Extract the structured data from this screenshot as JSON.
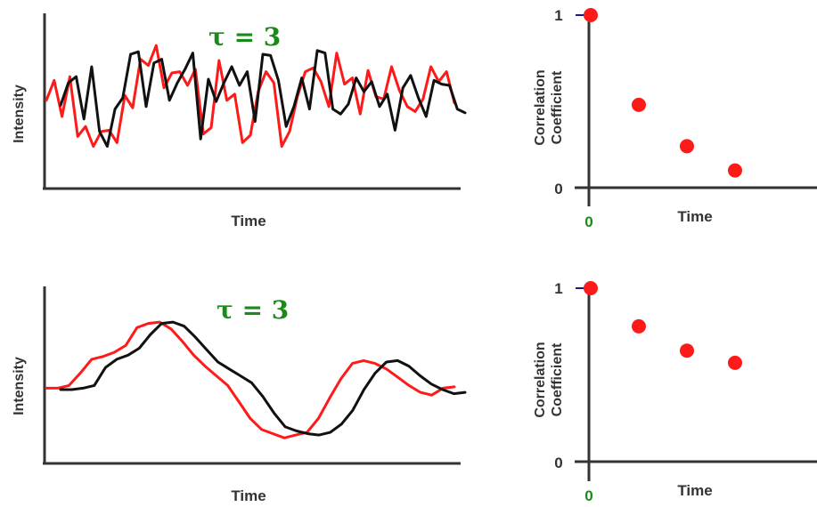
{
  "panels": [
    {
      "intensity": {
        "ylabel": "Intensity",
        "xlabel": "Time",
        "tau_label": "τ = 3",
        "red_trace": [
          0.48,
          0.64,
          0.35,
          0.67,
          0.19,
          0.27,
          0.11,
          0.23,
          0.24,
          0.14,
          0.52,
          0.42,
          0.81,
          0.76,
          0.92,
          0.58,
          0.7,
          0.71,
          0.6,
          0.73,
          0.21,
          0.26,
          0.8,
          0.48,
          0.53,
          0.14,
          0.2,
          0.55,
          0.71,
          0.62,
          0.11,
          0.23,
          0.51,
          0.71,
          0.74,
          0.63,
          0.43,
          0.86,
          0.61,
          0.66,
          0.37,
          0.72,
          0.51,
          0.49,
          0.75,
          0.56,
          0.43,
          0.39,
          0.49,
          0.75,
          0.63,
          0.71,
          0.46
        ],
        "black_trace": [
          0.44,
          0.62,
          0.67,
          0.33,
          0.75,
          0.23,
          0.11,
          0.41,
          0.5,
          0.85,
          0.87,
          0.43,
          0.78,
          0.81,
          0.48,
          0.62,
          0.73,
          0.86,
          0.17,
          0.65,
          0.47,
          0.62,
          0.75,
          0.6,
          0.71,
          0.31,
          0.85,
          0.84,
          0.64,
          0.27,
          0.43,
          0.66,
          0.41,
          0.88,
          0.86,
          0.41,
          0.37,
          0.45,
          0.66,
          0.55,
          0.63,
          0.43,
          0.53,
          0.24,
          0.58,
          0.68,
          0.5,
          0.35,
          0.64,
          0.61,
          0.6,
          0.41,
          0.38
        ]
      },
      "correlation": {
        "ylabel_line1": "Correlation",
        "ylabel_line2": "Coefficient",
        "xlabel": "Time",
        "y_top_label": "1",
        "y_bottom_label": "0",
        "x_origin_label": "0",
        "values": [
          1.0,
          0.48,
          0.24,
          0.1
        ]
      }
    },
    {
      "intensity": {
        "ylabel": "Intensity",
        "xlabel": "Time",
        "tau_label": "τ = 3",
        "red_trace": [
          0.41,
          0.41,
          0.43,
          0.52,
          0.62,
          0.64,
          0.67,
          0.72,
          0.85,
          0.88,
          0.89,
          0.84,
          0.75,
          0.65,
          0.57,
          0.5,
          0.43,
          0.31,
          0.19,
          0.11,
          0.08,
          0.05,
          0.07,
          0.09,
          0.19,
          0.34,
          0.48,
          0.59,
          0.61,
          0.59,
          0.55,
          0.49,
          0.43,
          0.38,
          0.36,
          0.41,
          0.42
        ],
        "black_trace": [
          0.4,
          0.4,
          0.41,
          0.43,
          0.56,
          0.62,
          0.65,
          0.7,
          0.8,
          0.88,
          0.89,
          0.86,
          0.78,
          0.69,
          0.6,
          0.55,
          0.5,
          0.45,
          0.35,
          0.23,
          0.13,
          0.1,
          0.08,
          0.07,
          0.09,
          0.15,
          0.25,
          0.4,
          0.52,
          0.6,
          0.61,
          0.57,
          0.5,
          0.44,
          0.4,
          0.37,
          0.38
        ]
      },
      "correlation": {
        "ylabel_line1": "Correlation",
        "ylabel_line2": "Coefficient",
        "xlabel": "Time",
        "y_top_label": "1",
        "y_bottom_label": "0",
        "x_origin_label": "0",
        "values": [
          1.0,
          0.78,
          0.64,
          0.57
        ]
      }
    }
  ],
  "colors": {
    "red_trace": "#ff1a1a",
    "black_trace": "#111111",
    "dots": "#ff1a1a",
    "green_labels": "#1a8a1a",
    "axes": "#333333"
  }
}
